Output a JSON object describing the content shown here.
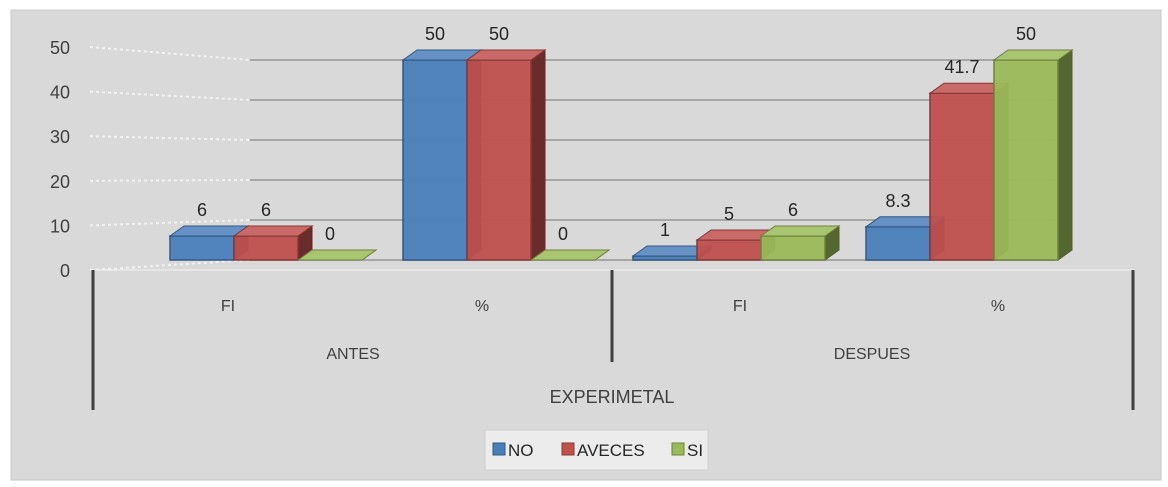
{
  "chart_data": {
    "type": "bar",
    "title": "",
    "xlabel": "",
    "ylabel": "",
    "ylim": [
      0,
      50
    ],
    "yticks": [
      "0",
      "10",
      "20",
      "30",
      "40",
      "50"
    ],
    "grid": true,
    "legend_position": "bottom",
    "categories": [
      "FI",
      "%",
      "FI",
      "%"
    ],
    "groups": [
      {
        "label": "ANTES",
        "categories": [
          0,
          1
        ]
      },
      {
        "label": "DESPUES",
        "categories": [
          2,
          3
        ]
      }
    ],
    "outer_label": "EXPERIMETAL",
    "series": [
      {
        "name": "NO",
        "color": "#4a7ebb",
        "values": [
          6,
          50,
          1,
          8.3
        ],
        "labels": [
          "6",
          "50",
          "1",
          "8.3"
        ]
      },
      {
        "name": "AVECES",
        "color": "#c0504d",
        "values": [
          6,
          50,
          5,
          41.7
        ],
        "labels": [
          "6",
          "50",
          "5",
          "41.7"
        ]
      },
      {
        "name": "SI",
        "color": "#9bbb59",
        "values": [
          0,
          0,
          6,
          50
        ],
        "labels": [
          "0",
          "0",
          "6",
          "50"
        ]
      }
    ]
  }
}
